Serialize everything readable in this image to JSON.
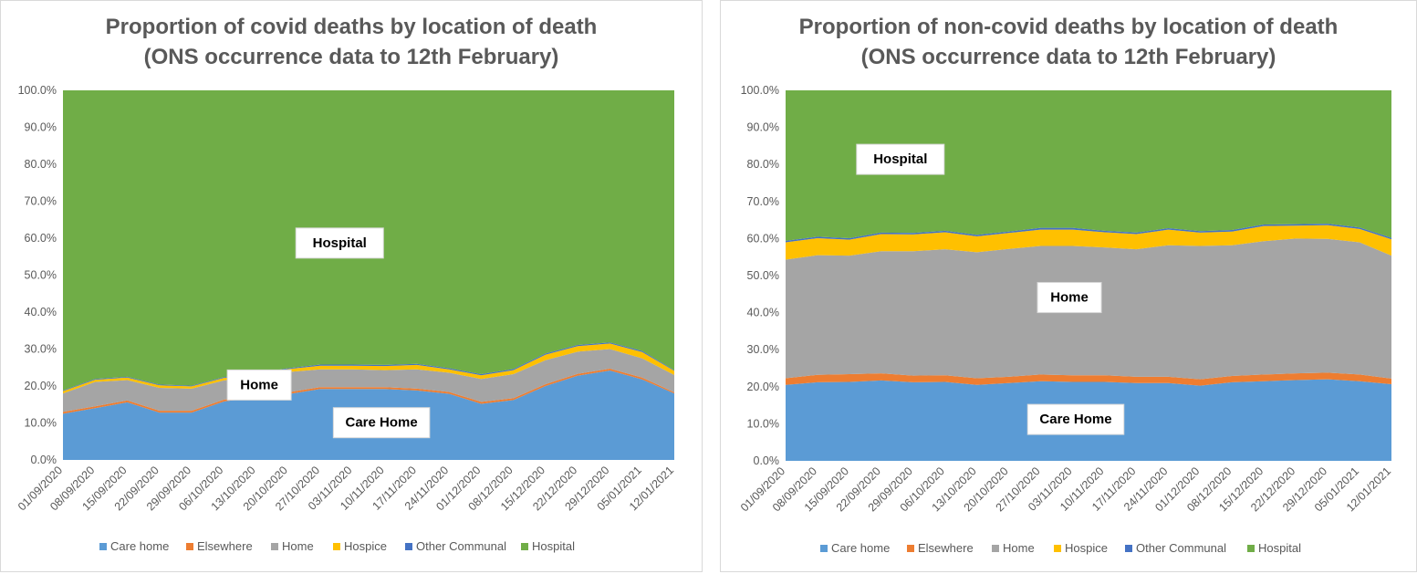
{
  "colors": {
    "care_home": "#5b9bd5",
    "elsewhere": "#ed7d31",
    "home": "#a5a5a5",
    "hospice": "#ffc000",
    "other_communal": "#4472c4",
    "hospital": "#70ad47"
  },
  "chart_data": [
    {
      "type": "area",
      "stacked": true,
      "title_line1": "Proportion of covid deaths by location of death",
      "title_line2": "(ONS occurrence data to 12th February)",
      "ylim": [
        0,
        100
      ],
      "y_ticks": [
        "0.0%",
        "10.0%",
        "20.0%",
        "30.0%",
        "40.0%",
        "50.0%",
        "60.0%",
        "70.0%",
        "80.0%",
        "90.0%",
        "100.0%"
      ],
      "categories": [
        "01/09/2020",
        "08/09/2020",
        "15/09/2020",
        "22/09/2020",
        "29/09/2020",
        "06/10/2020",
        "13/10/2020",
        "20/10/2020",
        "27/10/2020",
        "03/11/2020",
        "10/11/2020",
        "17/11/2020",
        "24/11/2020",
        "01/12/2020",
        "08/12/2020",
        "15/12/2020",
        "22/12/2020",
        "29/12/2020",
        "05/01/2021",
        "12/01/2021"
      ],
      "legend_position": "bottom",
      "series": [
        {
          "name": "Care home",
          "color_key": "care_home",
          "values": [
            12.5,
            14,
            15.6,
            12.8,
            12.8,
            15.8,
            17,
            17.8,
            19.2,
            19.2,
            19.2,
            18.8,
            17.9,
            15.2,
            16.2,
            20,
            22.8,
            24.2,
            21.8,
            18
          ]
        },
        {
          "name": "Elsewhere",
          "color_key": "elsewhere",
          "values": [
            0.5,
            0.5,
            0.5,
            0.5,
            0.5,
            0.5,
            0.5,
            0.5,
            0.5,
            0.5,
            0.5,
            0.5,
            0.5,
            0.5,
            0.5,
            0.5,
            0.5,
            0.5,
            0.5,
            0.3
          ]
        },
        {
          "name": "Home",
          "color_key": "home",
          "values": [
            5,
            6.6,
            5.5,
            6.2,
            6,
            5.2,
            5,
            5.5,
            4.8,
            4.8,
            4.6,
            5.2,
            5.2,
            6.2,
            6.5,
            6.5,
            6,
            5.3,
            5.2,
            4.7
          ]
        },
        {
          "name": "Hospice",
          "color_key": "hospice",
          "values": [
            0.6,
            0.6,
            0.7,
            0.7,
            0.6,
            0.7,
            0.7,
            0.8,
            1,
            1,
            1.1,
            1.2,
            0.9,
            1,
            1.1,
            1.5,
            1.5,
            1.5,
            1.7,
            1.1
          ]
        },
        {
          "name": "Other Communal",
          "color_key": "other_communal",
          "values": [
            0.2,
            0.2,
            0.2,
            0.2,
            0.2,
            0.2,
            0.2,
            0.2,
            0.3,
            0.3,
            0.3,
            0.3,
            0.3,
            0.3,
            0.3,
            0.3,
            0.3,
            0.3,
            0.3,
            0.2
          ]
        },
        {
          "name": "Hospital",
          "color_key": "hospital",
          "values": [
            81.2,
            78.1,
            77.5,
            79.6,
            79.9,
            77.6,
            76.6,
            75.2,
            74.2,
            74.2,
            74.3,
            74,
            75.2,
            76.8,
            75.4,
            71.2,
            68.9,
            68.2,
            70.5,
            75.7
          ]
        }
      ],
      "annotations": [
        {
          "label": "Hospital",
          "x_index": 8.6,
          "y": 58.8
        },
        {
          "label": "Home",
          "x_index": 6.1,
          "y": 20.4
        },
        {
          "label": "Care Home",
          "x_index": 9.9,
          "y": 10.2
        }
      ]
    },
    {
      "type": "area",
      "stacked": true,
      "title_line1": "Proportion of non-covid deaths by location of death",
      "title_line2": "(ONS occurrence data to 12th February)",
      "ylim": [
        0,
        100
      ],
      "y_ticks": [
        "0.0%",
        "10.0%",
        "20.0%",
        "30.0%",
        "40.0%",
        "50.0%",
        "60.0%",
        "70.0%",
        "80.0%",
        "90.0%",
        "100.0%"
      ],
      "categories": [
        "01/09/2020",
        "08/09/2020",
        "15/09/2020",
        "22/09/2020",
        "29/09/2020",
        "06/10/2020",
        "13/10/2020",
        "20/10/2020",
        "27/10/2020",
        "03/11/2020",
        "10/11/2020",
        "17/11/2020",
        "24/11/2020",
        "01/12/2020",
        "08/12/2020",
        "15/12/2020",
        "22/12/2020",
        "29/12/2020",
        "05/01/2021",
        "12/01/2021"
      ],
      "legend_position": "bottom",
      "series": [
        {
          "name": "Care home",
          "color_key": "care_home",
          "values": [
            20.5,
            21.2,
            21.3,
            21.7,
            21.2,
            21.3,
            20.5,
            21,
            21.5,
            21.3,
            21.3,
            21,
            21,
            20.3,
            21.2,
            21.5,
            21.8,
            22,
            21.5,
            20.7
          ]
        },
        {
          "name": "Elsewhere",
          "color_key": "elsewhere",
          "values": [
            1.8,
            2,
            2.1,
            1.9,
            1.8,
            1.8,
            1.8,
            1.7,
            1.8,
            1.8,
            1.8,
            1.7,
            1.7,
            1.7,
            1.7,
            1.8,
            1.8,
            1.8,
            1.8,
            1.5
          ]
        },
        {
          "name": "Home",
          "color_key": "home",
          "values": [
            32,
            32.3,
            32,
            33,
            33.6,
            34,
            34,
            34.5,
            34.7,
            34.9,
            34.5,
            34.4,
            35.5,
            36,
            35.3,
            36,
            36.4,
            36.1,
            35.7,
            33.2
          ]
        },
        {
          "name": "Hospice",
          "color_key": "hospice",
          "values": [
            4.7,
            4.6,
            4.3,
            4.6,
            4.5,
            4.6,
            4.3,
            4.3,
            4.4,
            4.4,
            4.1,
            4.1,
            4.2,
            3.6,
            3.7,
            4.1,
            3.5,
            3.7,
            3.6,
            4.4
          ]
        },
        {
          "name": "Other Communal",
          "color_key": "other_communal",
          "values": [
            0.4,
            0.4,
            0.4,
            0.4,
            0.4,
            0.4,
            0.4,
            0.4,
            0.5,
            0.5,
            0.4,
            0.4,
            0.4,
            0.4,
            0.4,
            0.4,
            0.4,
            0.4,
            0.4,
            0.4
          ]
        },
        {
          "name": "Hospital",
          "color_key": "hospital",
          "values": [
            40.6,
            39.5,
            39.9,
            38.4,
            38.5,
            37.9,
            39,
            38.1,
            37.1,
            37.1,
            37.9,
            38.4,
            37.2,
            38,
            37.7,
            36.2,
            36.1,
            36,
            37,
            39.8
          ]
        }
      ],
      "annotations": [
        {
          "label": "Hospital",
          "x_index": 3.6,
          "y": 81.5
        },
        {
          "label": "Home",
          "x_index": 8.9,
          "y": 44.2
        },
        {
          "label": "Care Home",
          "x_index": 9.1,
          "y": 11.3
        }
      ]
    }
  ]
}
